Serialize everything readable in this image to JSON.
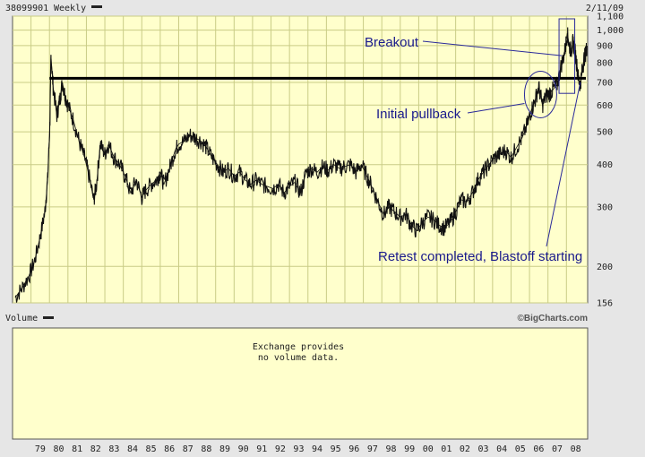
{
  "header": {
    "symbol": "38099901",
    "period": "Weekly",
    "date": "2/11/09"
  },
  "chart_data": {
    "type": "line",
    "scale": "log",
    "ylim": [
      156,
      1100
    ],
    "xlim": [
      1978.0,
      2009.15
    ],
    "x_tick_labels": [
      "79",
      "80",
      "81",
      "82",
      "83",
      "84",
      "85",
      "86",
      "87",
      "88",
      "89",
      "90",
      "91",
      "92",
      "93",
      "94",
      "95",
      "96",
      "97",
      "98",
      "99",
      "00",
      "01",
      "02",
      "03",
      "04",
      "05",
      "06",
      "07",
      "08"
    ],
    "x_tick_years": [
      1979,
      1980,
      1981,
      1982,
      1983,
      1984,
      1985,
      1986,
      1987,
      1988,
      1989,
      1990,
      1991,
      1992,
      1993,
      1994,
      1995,
      1996,
      1997,
      1998,
      1999,
      2000,
      2001,
      2002,
      2003,
      2004,
      2005,
      2006,
      2007,
      2008
    ],
    "y_ticks": [
      156,
      200,
      300,
      400,
      500,
      600,
      700,
      800,
      900,
      1000,
      1100
    ],
    "y_tick_labels": [
      "156",
      "200",
      "300",
      "400",
      "500",
      "600",
      "700",
      "800",
      "900",
      "1,000",
      "1,100"
    ],
    "series": [
      {
        "x": [
          1978.15,
          1978.5,
          1978.9,
          1979.2,
          1979.5,
          1979.75,
          1979.9,
          1980.02,
          1980.08,
          1980.2,
          1980.4,
          1980.55,
          1980.7,
          1980.85,
          1981.0,
          1981.3,
          1981.6,
          1981.9,
          1982.1,
          1982.4,
          1982.55,
          1982.75,
          1983.0,
          1983.2,
          1983.5,
          1983.8,
          1984.1,
          1984.4,
          1984.7,
          1985.0,
          1985.2,
          1985.5,
          1985.8,
          1986.0,
          1986.2,
          1986.5,
          1986.8,
          1987.0,
          1987.3,
          1987.6,
          1987.9,
          1988.2,
          1988.5,
          1988.8,
          1989.1,
          1989.4,
          1989.7,
          1990.0,
          1990.3,
          1990.6,
          1990.9,
          1991.2,
          1991.5,
          1991.8,
          1992.1,
          1992.4,
          1992.7,
          1993.0,
          1993.3,
          1993.6,
          1993.9,
          1994.2,
          1994.5,
          1994.8,
          1995.1,
          1995.4,
          1995.7,
          1996.0,
          1996.3,
          1996.6,
          1996.9,
          1997.2,
          1997.5,
          1997.8,
          1998.1,
          1998.4,
          1998.7,
          1999.0,
          1999.3,
          1999.6,
          1999.9,
          2000.2,
          2000.5,
          2000.8,
          2001.1,
          2001.4,
          2001.7,
          2002.0,
          2002.3,
          2002.6,
          2002.9,
          2003.2,
          2003.5,
          2003.8,
          2004.1,
          2004.4,
          2004.7,
          2005.0,
          2005.3,
          2005.6,
          2005.9,
          2006.1,
          2006.3,
          2006.5,
          2006.7,
          2006.9,
          2007.1,
          2007.3,
          2007.5,
          2007.7,
          2007.9,
          2008.05,
          2008.15,
          2008.25,
          2008.35,
          2008.45,
          2008.55,
          2008.65,
          2008.75,
          2008.85,
          2008.95,
          2009.05,
          2009.12
        ],
        "y": [
          162,
          172,
          188,
          208,
          245,
          290,
          360,
          520,
          840,
          680,
          560,
          620,
          700,
          640,
          600,
          540,
          470,
          420,
          380,
          315,
          350,
          460,
          430,
          460,
          420,
          400,
          370,
          330,
          360,
          320,
          335,
          350,
          360,
          380,
          350,
          390,
          440,
          460,
          470,
          490,
          480,
          470,
          450,
          420,
          400,
          380,
          390,
          370,
          380,
          360,
          350,
          360,
          350,
          345,
          340,
          350,
          330,
          345,
          355,
          330,
          380,
          390,
          380,
          395,
          385,
          400,
          390,
          395,
          400,
          380,
          400,
          370,
          340,
          310,
          285,
          300,
          290,
          280,
          285,
          265,
          255,
          270,
          280,
          275,
          265,
          260,
          270,
          290,
          315,
          310,
          330,
          360,
          380,
          400,
          420,
          430,
          440,
          420,
          450,
          480,
          530,
          580,
          620,
          680,
          600,
          640,
          650,
          670,
          690,
          780,
          860,
          980,
          900,
          870,
          920,
          880,
          800,
          720,
          690,
          760,
          820,
          860,
          900
        ]
      }
    ],
    "resistance_level": 720,
    "annotations": {
      "breakout": "Breakout",
      "initial_pullback": "Initial pullback",
      "retest": "Retest completed, Blastoff starting"
    },
    "highlight_box": {
      "x_range": [
        2007.6,
        2008.45
      ],
      "y_range": [
        650,
        1080
      ]
    },
    "highlight_circle": {
      "center_x": 2006.6,
      "center_y": 645
    }
  },
  "volume_panel": {
    "title": "Volume",
    "message_line1": "Exchange provides",
    "message_line2": "no volume data.",
    "credit": "©BigCharts.com"
  }
}
